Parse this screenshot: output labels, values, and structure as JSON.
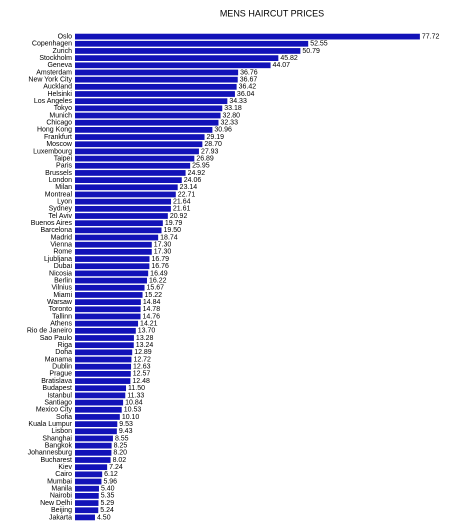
{
  "chart_data": {
    "type": "barh",
    "title": "MENS HAIRCUT PRICES",
    "categories": [
      "Oslo",
      "Copenhagen",
      "Zurich",
      "Stockholm",
      "Geneva",
      "Amsterdam",
      "New York City",
      "Auckland",
      "Helsinki",
      "Los Angeles",
      "Tokyo",
      "Munich",
      "Chicago",
      "Hong Kong",
      "Frankfurt",
      "Moscow",
      "Luxembourg",
      "Taipei",
      "Paris",
      "Brussels",
      "London",
      "Milan",
      "Montreal",
      "Lyon",
      "Sydney",
      "Tel Aviv",
      "Buenos Aires",
      "Barcelona",
      "Madrid",
      "Vienna",
      "Rome",
      "Ljubljana",
      "Dubai",
      "Nicosia",
      "Berlin",
      "Vilnius",
      "Miami",
      "Warsaw",
      "Toronto",
      "Tallinn",
      "Athens",
      "Rio de Janeiro",
      "Sao Paulo",
      "Riga",
      "Doha",
      "Manama",
      "Dublin",
      "Prague",
      "Bratislava",
      "Budapest",
      "Istanbul",
      "Santiago",
      "Mexico City",
      "Sofia",
      "Kuala Lumpur",
      "Lisbon",
      "Shanghai",
      "Bangkok",
      "Johannesburg",
      "Bucharest",
      "Kiev",
      "Cairo",
      "Mumbai",
      "Manila",
      "Nairobi",
      "New Delhi",
      "Beijing",
      "Jakarta"
    ],
    "values": [
      77.72,
      52.55,
      50.79,
      45.82,
      44.07,
      36.76,
      36.67,
      36.42,
      36.04,
      34.33,
      33.18,
      32.8,
      32.33,
      30.96,
      29.19,
      28.7,
      27.93,
      26.89,
      25.95,
      24.92,
      24.06,
      23.14,
      22.71,
      21.64,
      21.61,
      20.92,
      19.79,
      19.5,
      18.74,
      17.3,
      17.3,
      16.79,
      16.76,
      16.49,
      16.22,
      15.67,
      15.22,
      14.84,
      14.78,
      14.76,
      14.21,
      13.7,
      13.28,
      13.24,
      12.89,
      12.72,
      12.63,
      12.57,
      12.48,
      11.5,
      11.33,
      10.84,
      10.53,
      10.1,
      9.53,
      9.43,
      8.55,
      8.25,
      8.2,
      8.02,
      7.24,
      6.12,
      5.96,
      5.4,
      5.35,
      5.29,
      5.24,
      4.5
    ],
    "value_labels": [
      "77.72",
      "52.55",
      "50.79",
      "45.82",
      "44.07",
      "36.76",
      "36.67",
      "36.42",
      "36.04",
      "34.33",
      "33.18",
      "32.80",
      "32.33",
      "30.96",
      "29.19",
      "28.70",
      "27.93",
      "26.89",
      "25.95",
      "24.92",
      "24.06",
      "23.14",
      "22.71",
      "21.64",
      "21.61",
      "20.92",
      "19.79",
      "19.50",
      "18.74",
      "17.30",
      "17.30",
      "16.79",
      "16.76",
      "16.49",
      "16.22",
      "15.67",
      "15.22",
      "14.84",
      "14.78",
      "14.76",
      "14.21",
      "13.70",
      "13.28",
      "13.24",
      "12.89",
      "12.72",
      "12.63",
      "12.57",
      "12.48",
      "11.50",
      "11.33",
      "10.84",
      "10.53",
      "10.10",
      "9.53",
      "9.43",
      "8.55",
      "8.25",
      "8.20",
      "8.02",
      "7.24",
      "6.12",
      "5.96",
      "5.40",
      "5.35",
      "5.29",
      "5.24",
      "4.50"
    ],
    "color": "#1212b8",
    "xlim": [
      0,
      80
    ]
  }
}
